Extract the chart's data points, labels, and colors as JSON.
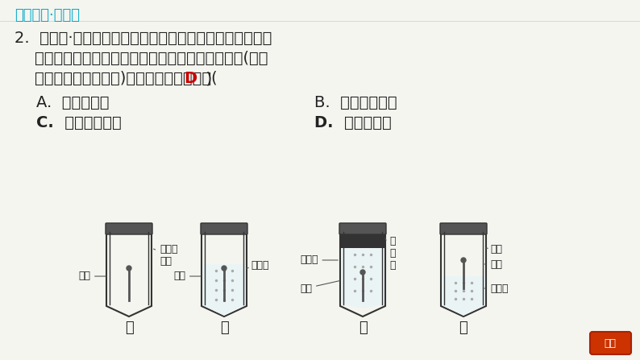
{
  "bg_color": "#f5f5f0",
  "title_text": "夯实基础·逐点练",
  "title_color": "#00aacc",
  "question_lines": [
    "2.  【中考·广东】探究铁生锈的条件，有利于寻找防止铁制",
    "    品锈蚀的方法。下列对比实验设计与所探究的条件(蒸馏",
    "    水经煮沸并迅速冷却)，对应关系正确的是(  D  )"
  ],
  "options": [
    [
      "A.  甲和乙：水",
      "B.  乙和丙：空气"
    ],
    [
      "C.  甲和丙：空气",
      "D.  甲和丁：水"
    ]
  ],
  "answer_color": "#cc0000",
  "text_color": "#222222",
  "tube_labels": [
    "甲",
    "乙",
    "丙",
    "丁"
  ]
}
